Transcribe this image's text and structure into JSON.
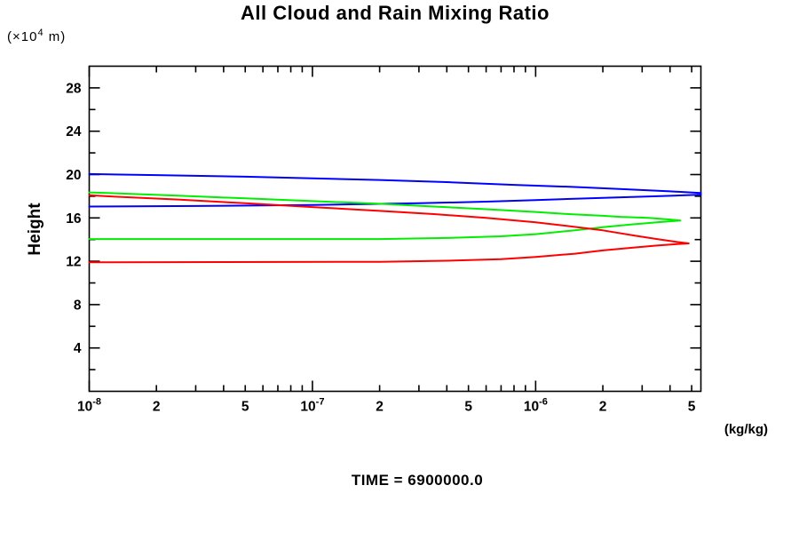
{
  "title": "All Cloud and Rain Mixing Ratio",
  "y_unit": {
    "prefix": "(×10",
    "sup": "4",
    "suffix": " m)"
  },
  "y_axis_title": "Height",
  "x_unit": "(kg/kg)",
  "time_caption": "TIME = 6900000.0",
  "colors": {
    "axis": "#000000",
    "blue_series": "#0000ff",
    "green_series": "#00ee00",
    "red_series": "#ff0000"
  },
  "chart_data": {
    "type": "line",
    "title": "All Cloud and Rain Mixing Ratio",
    "xlabel": "(kg/kg)",
    "ylabel": "Height (×10^4 m)",
    "x_scale": "log",
    "xlim": [
      1e-08,
      5.5e-06
    ],
    "ylim": [
      0,
      30
    ],
    "grid": false,
    "legend": "none",
    "annotation": "TIME = 6900000.0",
    "x_ticks": [
      {
        "v": 1e-08,
        "base": "10",
        "exp": "-8",
        "major": true
      },
      {
        "v": 2e-08,
        "label": "2"
      },
      {
        "v": 3e-08
      },
      {
        "v": 4e-08
      },
      {
        "v": 5e-08,
        "label": "5"
      },
      {
        "v": 6e-08
      },
      {
        "v": 7e-08
      },
      {
        "v": 8e-08
      },
      {
        "v": 9e-08
      },
      {
        "v": 1e-07,
        "base": "10",
        "exp": "-7",
        "major": true
      },
      {
        "v": 2e-07,
        "label": "2"
      },
      {
        "v": 3e-07
      },
      {
        "v": 4e-07
      },
      {
        "v": 5e-07,
        "label": "5"
      },
      {
        "v": 6e-07
      },
      {
        "v": 7e-07
      },
      {
        "v": 8e-07
      },
      {
        "v": 9e-07
      },
      {
        "v": 1e-06,
        "base": "10",
        "exp": "-6",
        "major": true
      },
      {
        "v": 2e-06,
        "label": "2"
      },
      {
        "v": 3e-06
      },
      {
        "v": 4e-06
      },
      {
        "v": 5e-06,
        "label": "5"
      }
    ],
    "y_ticks": [
      {
        "v": 2
      },
      {
        "v": 4,
        "label": "4"
      },
      {
        "v": 6
      },
      {
        "v": 8,
        "label": "8"
      },
      {
        "v": 10
      },
      {
        "v": 12,
        "label": "12"
      },
      {
        "v": 14
      },
      {
        "v": 16,
        "label": "16"
      },
      {
        "v": 18
      },
      {
        "v": 20,
        "label": "20"
      },
      {
        "v": 22
      },
      {
        "v": 24,
        "label": "24"
      },
      {
        "v": 26
      },
      {
        "v": 28,
        "label": "28"
      }
    ],
    "series": [
      {
        "name": "blue-profile",
        "color": "#0000ff",
        "points": [
          [
            1e-08,
            17.05
          ],
          [
            3e-08,
            17.1
          ],
          [
            1e-07,
            17.2
          ],
          [
            3e-07,
            17.35
          ],
          [
            6e-07,
            17.5
          ],
          [
            1e-06,
            17.65
          ],
          [
            2e-06,
            17.85
          ],
          [
            3.5e-06,
            18.0
          ],
          [
            5.5e-06,
            18.15
          ],
          [
            5.5e-06,
            18.3
          ],
          [
            4e-06,
            18.45
          ],
          [
            2.5e-06,
            18.65
          ],
          [
            1.5e-06,
            18.85
          ],
          [
            8e-07,
            19.05
          ],
          [
            4e-07,
            19.3
          ],
          [
            2e-07,
            19.5
          ],
          [
            1e-07,
            19.65
          ],
          [
            5e-08,
            19.8
          ],
          [
            2e-08,
            19.95
          ],
          [
            1e-08,
            20.05
          ]
        ]
      },
      {
        "name": "green-profile",
        "color": "#00ee00",
        "points": [
          [
            1e-08,
            14.05
          ],
          [
            2e-07,
            14.05
          ],
          [
            4e-07,
            14.15
          ],
          [
            7e-07,
            14.3
          ],
          [
            1e-06,
            14.5
          ],
          [
            1.5e-06,
            14.85
          ],
          [
            2e-06,
            15.15
          ],
          [
            2.7e-06,
            15.4
          ],
          [
            3.5e-06,
            15.6
          ],
          [
            4.45e-06,
            15.75
          ],
          [
            4e-06,
            15.85
          ],
          [
            3.2e-06,
            16.0
          ],
          [
            2.4e-06,
            16.1
          ],
          [
            2e-06,
            16.2
          ],
          [
            1.4e-06,
            16.35
          ],
          [
            1e-06,
            16.55
          ],
          [
            6e-07,
            16.8
          ],
          [
            3.5e-07,
            17.05
          ],
          [
            2e-07,
            17.3
          ],
          [
            1e-07,
            17.55
          ],
          [
            5e-08,
            17.8
          ],
          [
            2.5e-08,
            18.05
          ],
          [
            1.2e-08,
            18.3
          ],
          [
            1e-08,
            18.35
          ]
        ]
      },
      {
        "name": "red-profile",
        "color": "#ff0000",
        "points": [
          [
            1e-08,
            11.9
          ],
          [
            2e-07,
            11.95
          ],
          [
            4e-07,
            12.05
          ],
          [
            7e-07,
            12.2
          ],
          [
            1e-06,
            12.4
          ],
          [
            1.5e-06,
            12.7
          ],
          [
            2e-06,
            13.0
          ],
          [
            2.7e-06,
            13.25
          ],
          [
            3.5e-06,
            13.45
          ],
          [
            4.3e-06,
            13.58
          ],
          [
            4.85e-06,
            13.65
          ],
          [
            4.3e-06,
            13.78
          ],
          [
            3.5e-06,
            14.05
          ],
          [
            2.8e-06,
            14.35
          ],
          [
            2e-06,
            14.85
          ],
          [
            1.4e-06,
            15.25
          ],
          [
            1e-06,
            15.6
          ],
          [
            6e-07,
            16.0
          ],
          [
            3.5e-07,
            16.35
          ],
          [
            2e-07,
            16.65
          ],
          [
            1e-07,
            17.0
          ],
          [
            5e-08,
            17.35
          ],
          [
            2.5e-08,
            17.7
          ],
          [
            1.2e-08,
            18.0
          ],
          [
            1e-08,
            18.1
          ]
        ]
      }
    ]
  }
}
